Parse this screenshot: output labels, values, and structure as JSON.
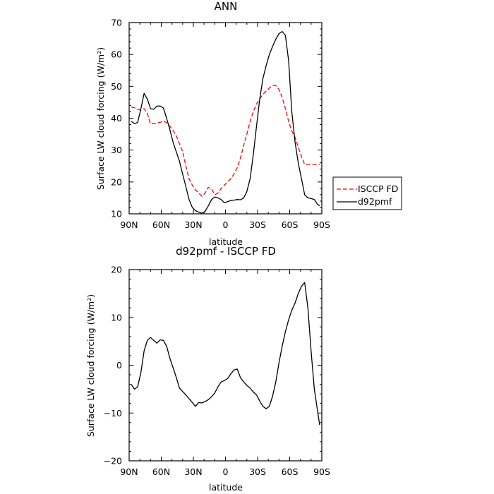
{
  "chart_data": [
    {
      "type": "line",
      "title": "ANN",
      "xlabel": "latitude",
      "ylabel": "Surface LW cloud forcing (W/m²)",
      "xlim": [
        90,
        -90
      ],
      "ylim": [
        10,
        70
      ],
      "x_ticks": [
        90,
        60,
        30,
        0,
        -30,
        -60,
        -90
      ],
      "x_tick_labels": [
        "90N",
        "60N",
        "30N",
        "0",
        "30S",
        "60S",
        "90S"
      ],
      "y_ticks": [
        10,
        20,
        30,
        40,
        50,
        60,
        70
      ],
      "y_tick_labels": [
        "10",
        "20",
        "30",
        "40",
        "50",
        "60",
        "70"
      ],
      "legend_position": "right",
      "series": [
        {
          "name": "ISCCP FD",
          "color": "#ff0000",
          "dash": "dashed",
          "x": [
            88,
            85,
            82,
            79,
            76,
            73,
            70,
            67,
            64,
            61,
            58,
            55,
            52,
            49,
            46,
            43,
            40,
            37,
            34,
            31,
            28,
            25,
            22,
            19,
            16,
            13,
            10,
            7,
            4,
            1,
            -2,
            -5,
            -8,
            -11,
            -14,
            -17,
            -20,
            -23,
            -26,
            -29,
            -32,
            -35,
            -38,
            -41,
            -44,
            -47,
            -50,
            -53,
            -56,
            -59,
            -62,
            -65,
            -68,
            -71,
            -74,
            -77,
            -80,
            -83,
            -86,
            -88
          ],
          "y": [
            43.5,
            43.3,
            42.8,
            42.5,
            43.0,
            41.5,
            38.2,
            38.3,
            38.5,
            38.7,
            39.2,
            38.5,
            37.5,
            36.2,
            34.5,
            32.0,
            29.5,
            25.0,
            21.0,
            19.0,
            17.5,
            16.5,
            15.5,
            16.5,
            18.3,
            17.8,
            16.0,
            16.5,
            18.0,
            19.0,
            20.0,
            21.0,
            22.5,
            24.5,
            27.5,
            31.5,
            35.0,
            39.0,
            42.0,
            44.5,
            46.0,
            47.5,
            48.5,
            49.5,
            50.2,
            50.3,
            49.0,
            46.5,
            43.0,
            39.0,
            36.0,
            34.0,
            31.0,
            28.0,
            25.5,
            25.5,
            25.5,
            25.5,
            25.5,
            25.5
          ]
        },
        {
          "name": "d92pmf",
          "color": "#000000",
          "dash": "solid",
          "x": [
            88,
            85,
            82,
            79,
            76,
            73,
            70,
            67,
            64,
            61,
            58,
            55,
            52,
            49,
            46,
            43,
            40,
            37,
            34,
            31,
            28,
            25,
            22,
            19,
            16,
            13,
            10,
            7,
            4,
            1,
            -2,
            -5,
            -8,
            -11,
            -14,
            -17,
            -20,
            -23,
            -26,
            -29,
            -32,
            -35,
            -38,
            -41,
            -44,
            -47,
            -50,
            -53,
            -56,
            -59,
            -62,
            -65,
            -68,
            -71,
            -74,
            -77,
            -80,
            -83,
            -86,
            -88
          ],
          "y": [
            39.0,
            38.3,
            38.7,
            43.0,
            47.8,
            46.0,
            43.0,
            42.8,
            43.8,
            43.8,
            43.2,
            40.0,
            36.5,
            32.5,
            29.5,
            26.5,
            22.5,
            18.5,
            14.5,
            12.0,
            11.0,
            10.5,
            10.2,
            10.8,
            12.5,
            14.5,
            15.3,
            15.0,
            14.5,
            13.5,
            13.8,
            14.2,
            14.3,
            14.5,
            14.4,
            15.0,
            17.0,
            21.0,
            28.5,
            37.5,
            46.0,
            52.5,
            56.5,
            60.0,
            62.5,
            64.8,
            66.5,
            67.2,
            66.0,
            58.0,
            42.0,
            32.5,
            26.0,
            21.0,
            16.0,
            15.0,
            14.8,
            14.5,
            13.0,
            12.5
          ]
        }
      ]
    },
    {
      "type": "line",
      "title": "d92pmf - ISCCP FD",
      "xlabel": "latitude",
      "ylabel": "Surface LW cloud forcing (W/m²)",
      "xlim": [
        90,
        -90
      ],
      "ylim": [
        -20,
        20
      ],
      "x_ticks": [
        90,
        60,
        30,
        0,
        -30,
        -60,
        -90
      ],
      "x_tick_labels": [
        "90N",
        "60N",
        "30N",
        "0",
        "30S",
        "60S",
        "90S"
      ],
      "y_ticks": [
        -20,
        -10,
        0,
        10,
        20
      ],
      "y_tick_labels": [
        "−20",
        "−10",
        "0",
        "10",
        "20"
      ],
      "series": [
        {
          "color": "#000000",
          "dash": "solid",
          "x": [
            88,
            85,
            82,
            79,
            76,
            73,
            70,
            67,
            64,
            61,
            58,
            55,
            52,
            49,
            46,
            43,
            40,
            37,
            34,
            31,
            28,
            25,
            22,
            19,
            16,
            13,
            10,
            7,
            4,
            1,
            -2,
            -5,
            -8,
            -11,
            -14,
            -17,
            -20,
            -23,
            -26,
            -29,
            -32,
            -35,
            -38,
            -41,
            -44,
            -47,
            -50,
            -53,
            -56,
            -59,
            -62,
            -65,
            -68,
            -71,
            -74,
            -77,
            -80,
            -83,
            -86,
            -88
          ],
          "y": [
            -4.0,
            -5.0,
            -4.5,
            -1.5,
            3.0,
            5.2,
            5.8,
            5.2,
            4.6,
            5.3,
            5.2,
            4.0,
            1.5,
            -0.5,
            -2.5,
            -4.8,
            -5.5,
            -6.2,
            -7.0,
            -7.8,
            -8.6,
            -7.8,
            -7.9,
            -7.6,
            -7.2,
            -6.6,
            -5.8,
            -4.5,
            -3.5,
            -3.2,
            -2.8,
            -1.8,
            -1.0,
            -0.8,
            -2.6,
            -3.5,
            -4.2,
            -4.8,
            -5.6,
            -6.2,
            -7.5,
            -8.6,
            -9.1,
            -8.6,
            -6.5,
            -3.5,
            0.5,
            4.0,
            7.0,
            9.5,
            11.5,
            13.0,
            15.0,
            16.5,
            17.3,
            12.0,
            3.0,
            -5.0,
            -9.5,
            -12.5
          ]
        }
      ]
    }
  ]
}
